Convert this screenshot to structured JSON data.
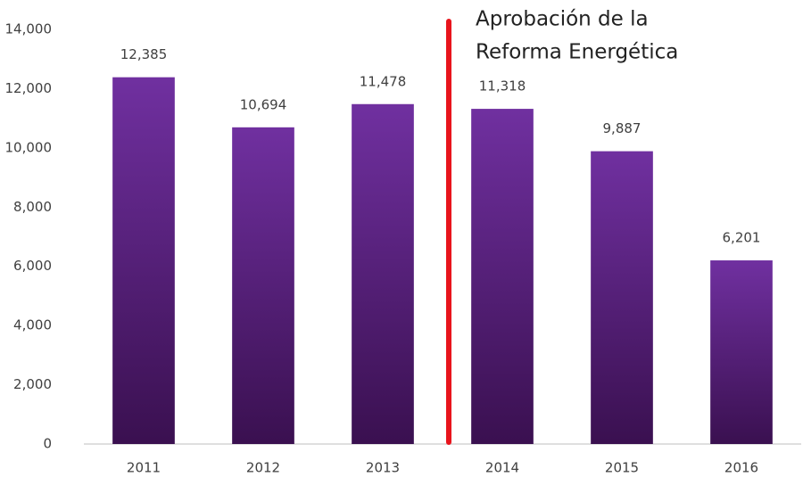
{
  "chart_data": {
    "type": "bar",
    "categories": [
      "2011",
      "2012",
      "2013",
      "2014",
      "2015",
      "2016"
    ],
    "values": [
      12385,
      10694,
      11478,
      11318,
      9887,
      6201
    ],
    "value_labels": [
      "12,385",
      "10,694",
      "11,478",
      "11,318",
      "9,887",
      "6,201"
    ],
    "color": "#7030a0",
    "annotation": [
      "Aprobación de la",
      "Reforma Energética"
    ],
    "ylim": [
      0,
      14000
    ],
    "yticks": [
      0,
      {
        "value": 2000,
        "label": "2,000"
      },
      {
        "value": 4000,
        "label": "4,000"
      },
      {
        "value": 6000,
        "label": "6,000"
      },
      {
        "value": 8000,
        "label": "8,000"
      },
      {
        "value": 10000,
        "label": "10,000"
      },
      {
        "value": 12000,
        "label": "12,000"
      },
      {
        "value": 14000,
        "label": "14,000"
      }
    ],
    "grid": false
  }
}
